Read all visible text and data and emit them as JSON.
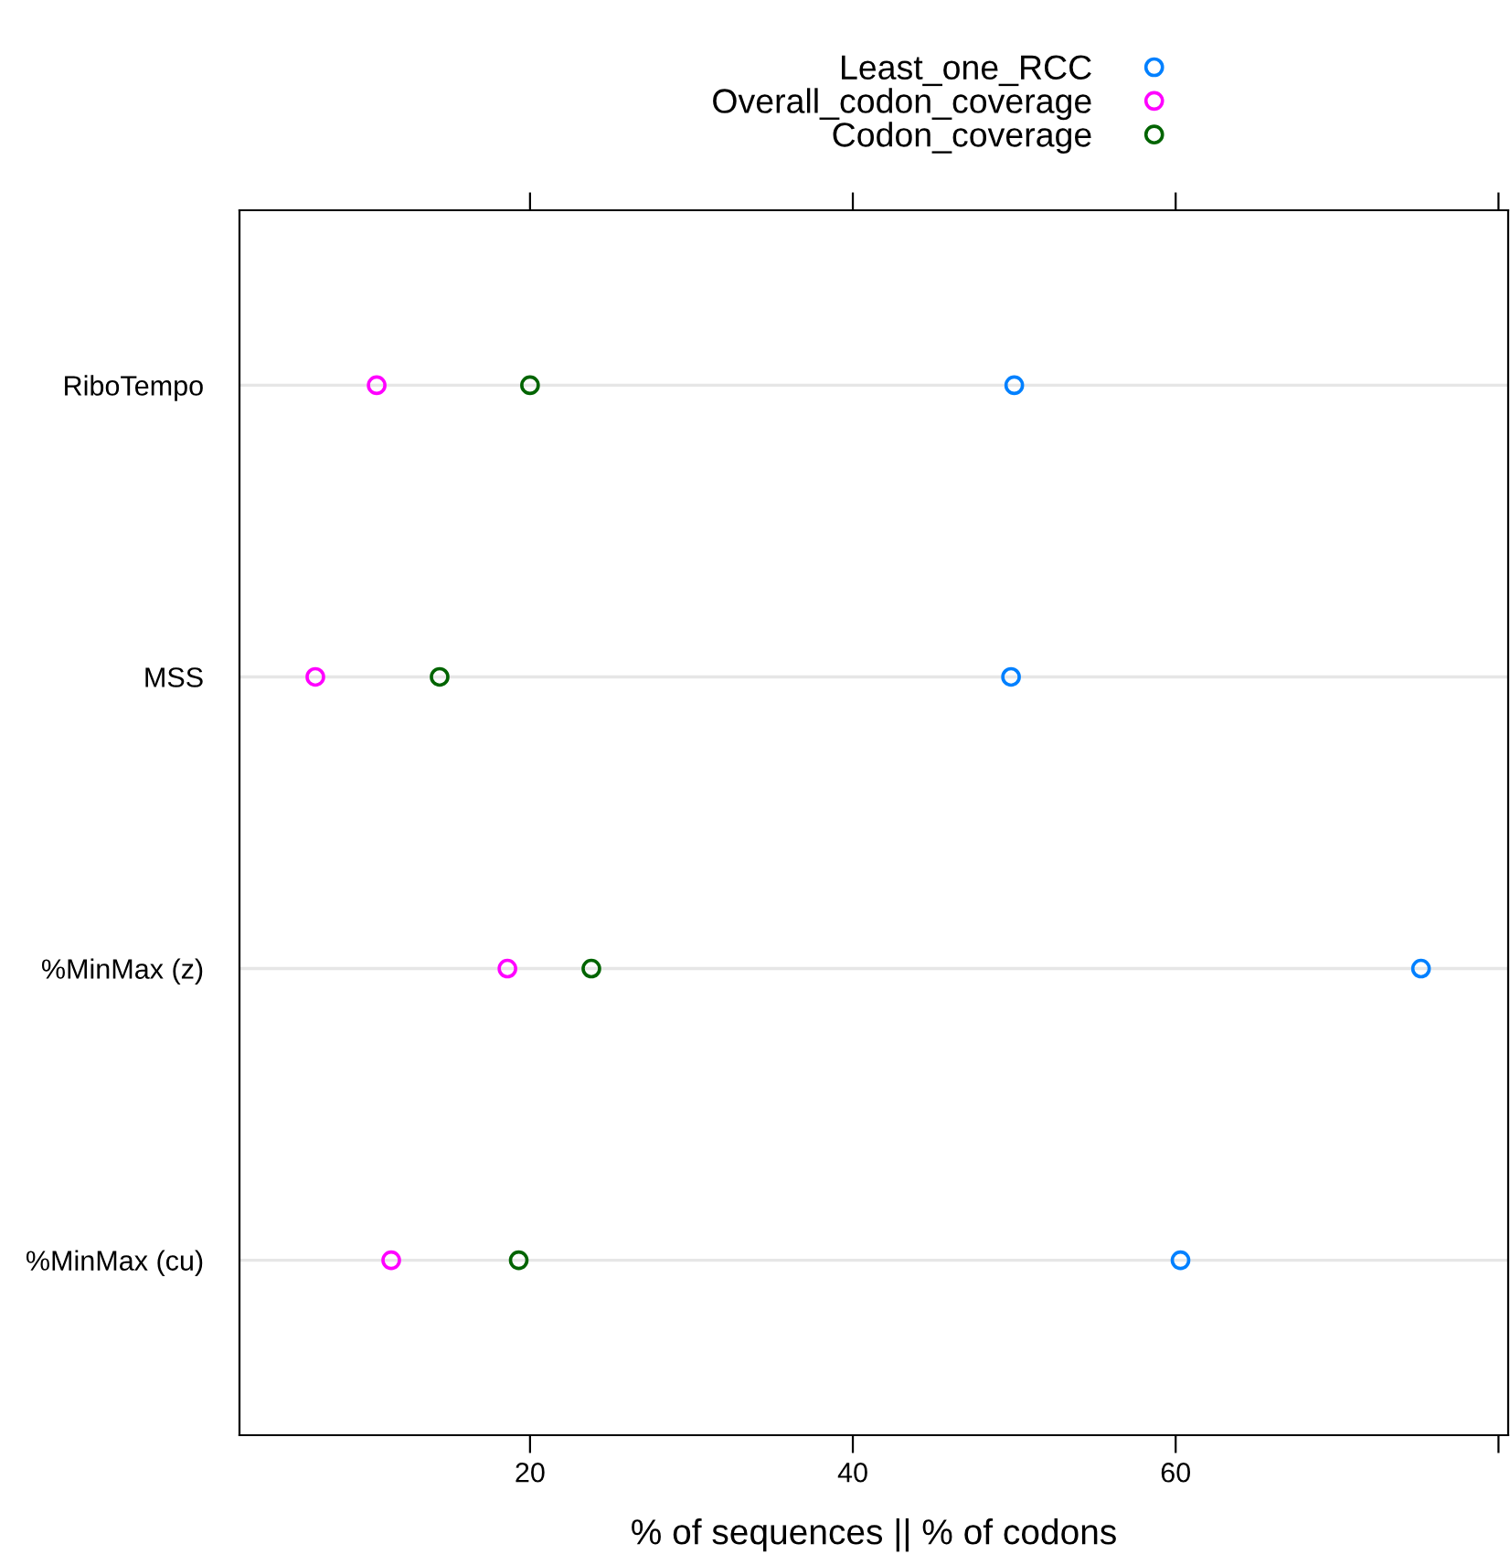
{
  "chart_data": {
    "type": "scatter",
    "orientation": "horizontal",
    "xlabel": "% of sequences || % of codons",
    "categories": [
      "RiboTempo",
      "MSS",
      "%MinMax (z)",
      "%MinMax (cu)"
    ],
    "series": [
      {
        "name": "Least_one_RCC",
        "color": "#0080ff",
        "values": [
          50.0,
          49.8,
          75.2,
          60.3
        ]
      },
      {
        "name": "Overall_codon_coverage",
        "color": "#ff00ff",
        "values": [
          10.5,
          6.7,
          18.6,
          11.4
        ]
      },
      {
        "name": "Codon_coverage",
        "color": "#006400",
        "values": [
          20.0,
          14.4,
          23.8,
          19.3
        ]
      }
    ],
    "xlim": [
      2,
      80.6
    ],
    "xticks": [
      20,
      40,
      60,
      {
        "value": 80,
        "label": null
      }
    ],
    "grid": "y",
    "legend": "top",
    "marker": "circle"
  }
}
